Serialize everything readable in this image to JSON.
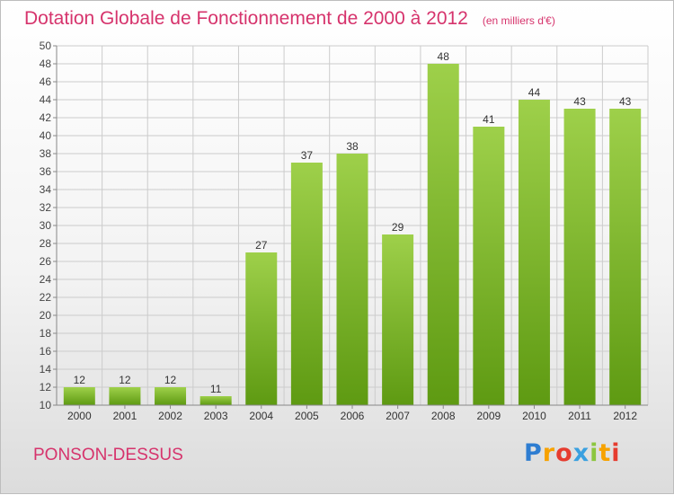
{
  "header": {
    "title": "Dotation Globale de Fonctionnement de 2000 à 2012",
    "unit": "(en milliers d'€)"
  },
  "footer": {
    "commune": "PONSON-DESSUS",
    "brand": "Proxiti",
    "brand_colors": [
      "#2e7dd1",
      "#f7a200",
      "#e63c2f",
      "#3aa0e0",
      "#8cc63f",
      "#f7a200",
      "#e63c2f"
    ]
  },
  "colors": {
    "accent": "#d6336c",
    "bar_top": "#9ed04a",
    "bar_bottom": "#5e9a12",
    "grid": "#cccccc"
  },
  "chart_data": {
    "type": "bar",
    "categories": [
      "2000",
      "2001",
      "2002",
      "2003",
      "2004",
      "2005",
      "2006",
      "2007",
      "2008",
      "2009",
      "2010",
      "2011",
      "2012"
    ],
    "values": [
      12,
      12,
      12,
      11,
      27,
      37,
      38,
      29,
      48,
      41,
      44,
      43,
      43
    ],
    "data_labels": [
      "12",
      "12",
      "12",
      "11",
      "27",
      "37",
      "38",
      "29",
      "48",
      "41",
      "44",
      "43",
      "43"
    ],
    "ylim": [
      10,
      50
    ],
    "yticks": [
      "10",
      "12",
      "14",
      "16",
      "18",
      "20",
      "22",
      "24",
      "26",
      "28",
      "30",
      "32",
      "34",
      "36",
      "38",
      "40",
      "42",
      "44",
      "46",
      "48",
      "50"
    ],
    "grid": true,
    "legend": "none"
  }
}
